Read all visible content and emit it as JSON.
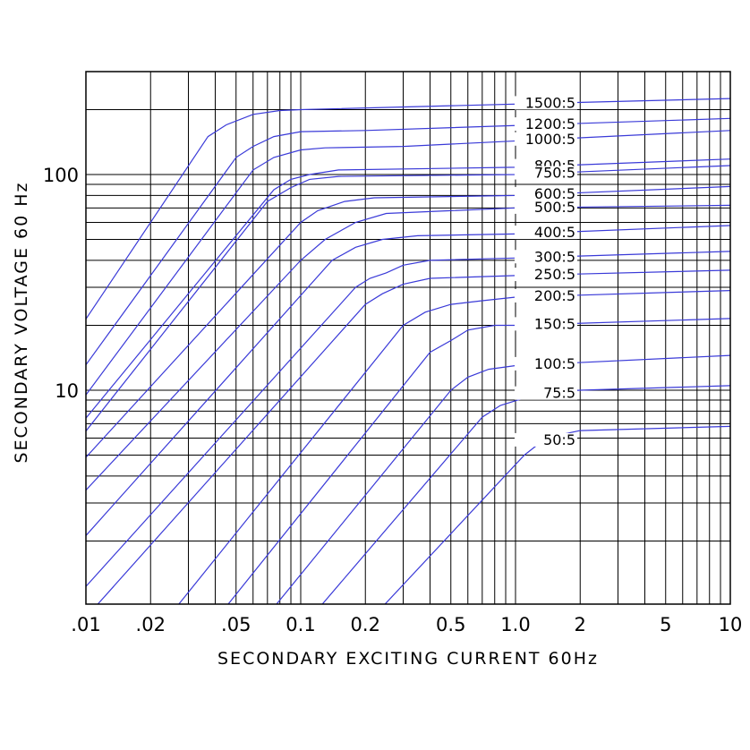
{
  "chart_data": {
    "type": "line",
    "title": "",
    "xlabel": "SECONDARY EXCITING CURRENT 60Hz",
    "ylabel": "SECONDARY VOLTAGE 60 Hz",
    "x_scale": "log",
    "y_scale": "log",
    "xlim": [
      0.01,
      10
    ],
    "ylim": [
      1.3,
      300
    ],
    "grid": true,
    "series_color": "#3a3ad8",
    "x_ticks": [
      {
        "value": 0.01,
        "label": ".01"
      },
      {
        "value": 0.02,
        "label": ".02"
      },
      {
        "value": 0.05,
        "label": ".05"
      },
      {
        "value": 0.1,
        "label": "0.1"
      },
      {
        "value": 0.2,
        "label": "0.2"
      },
      {
        "value": 0.5,
        "label": "0.5"
      },
      {
        "value": 1.0,
        "label": "1.0"
      },
      {
        "value": 2,
        "label": "2"
      },
      {
        "value": 5,
        "label": "5"
      },
      {
        "value": 10,
        "label": "10"
      }
    ],
    "y_ticks": [
      {
        "value": 10,
        "label": "10"
      },
      {
        "value": 100,
        "label": "100"
      }
    ],
    "series": [
      {
        "name": "1500:5",
        "points": [
          [
            0.006,
            10
          ],
          [
            0.037,
            150
          ],
          [
            0.045,
            170
          ],
          [
            0.06,
            190
          ],
          [
            0.08,
            198
          ],
          [
            0.1,
            200
          ],
          [
            10,
            225
          ]
        ]
      },
      {
        "name": "1200:5",
        "points": [
          [
            0.006,
            6.5
          ],
          [
            0.05,
            120
          ],
          [
            0.06,
            135
          ],
          [
            0.075,
            150
          ],
          [
            0.1,
            158
          ],
          [
            0.2,
            160
          ],
          [
            10,
            182
          ]
        ]
      },
      {
        "name": "1000:5",
        "points": [
          [
            0.006,
            4.8
          ],
          [
            0.06,
            105
          ],
          [
            0.075,
            120
          ],
          [
            0.1,
            130
          ],
          [
            0.13,
            133
          ],
          [
            0.3,
            135
          ],
          [
            10,
            160
          ]
        ]
      },
      {
        "name": "800:5",
        "points": [
          [
            0.006,
            4
          ],
          [
            0.075,
            85
          ],
          [
            0.09,
            95
          ],
          [
            0.11,
            100
          ],
          [
            0.15,
            105
          ],
          [
            1,
            108
          ],
          [
            10,
            118
          ]
        ]
      },
      {
        "name": "750:5",
        "points": [
          [
            0.006,
            3.4
          ],
          [
            0.07,
            75
          ],
          [
            0.09,
            87
          ],
          [
            0.11,
            95
          ],
          [
            0.15,
            98
          ],
          [
            1,
            100
          ],
          [
            10,
            110
          ]
        ]
      },
      {
        "name": "600:5",
        "points": [
          [
            0.006,
            2.8
          ],
          [
            0.1,
            60
          ],
          [
            0.12,
            68
          ],
          [
            0.16,
            75
          ],
          [
            0.22,
            78
          ],
          [
            1,
            80
          ],
          [
            10,
            88
          ]
        ]
      },
      {
        "name": "500:5",
        "points": [
          [
            0.006,
            2
          ],
          [
            0.1,
            40
          ],
          [
            0.13,
            50
          ],
          [
            0.18,
            60
          ],
          [
            0.25,
            66
          ],
          [
            0.5,
            68
          ],
          [
            1,
            70
          ],
          [
            10,
            72
          ]
        ]
      },
      {
        "name": "400:5",
        "points": [
          [
            0.006,
            1.2
          ],
          [
            0.14,
            40
          ],
          [
            0.18,
            46
          ],
          [
            0.24,
            50
          ],
          [
            0.35,
            52
          ],
          [
            1,
            53
          ],
          [
            10,
            58
          ]
        ]
      },
      {
        "name": "300:5",
        "points": [
          [
            0.006,
            0.7
          ],
          [
            0.18,
            30
          ],
          [
            0.21,
            33
          ],
          [
            0.25,
            35
          ],
          [
            0.3,
            38
          ],
          [
            0.4,
            40
          ],
          [
            1,
            41
          ],
          [
            10,
            44
          ]
        ]
      },
      {
        "name": "250:5",
        "points": [
          [
            0.006,
            0.5
          ],
          [
            0.2,
            25
          ],
          [
            0.24,
            28
          ],
          [
            0.3,
            31
          ],
          [
            0.4,
            33
          ],
          [
            1,
            34
          ],
          [
            10,
            36
          ]
        ]
      },
      {
        "name": "200:5",
        "points": [
          [
            0.02,
            0.7
          ],
          [
            0.3,
            20
          ],
          [
            0.38,
            23
          ],
          [
            0.5,
            25
          ],
          [
            0.7,
            26
          ],
          [
            1,
            27
          ],
          [
            10,
            29
          ]
        ]
      },
      {
        "name": "150:5",
        "points": [
          [
            0.03,
            0.6
          ],
          [
            0.4,
            15
          ],
          [
            0.5,
            17
          ],
          [
            0.6,
            19
          ],
          [
            0.8,
            20
          ],
          [
            1,
            20
          ],
          [
            10,
            21.5
          ]
        ]
      },
      {
        "name": "100:5",
        "points": [
          [
            0.05,
            0.6
          ],
          [
            0.5,
            10
          ],
          [
            0.6,
            11.5
          ],
          [
            0.75,
            12.5
          ],
          [
            1,
            13
          ],
          [
            10,
            14.5
          ]
        ]
      },
      {
        "name": "75:5",
        "points": [
          [
            0.08,
            0.6
          ],
          [
            0.7,
            7.5
          ],
          [
            0.85,
            8.5
          ],
          [
            1.1,
            9.2
          ],
          [
            1.5,
            9.8
          ],
          [
            2,
            10
          ],
          [
            10,
            10.5
          ]
        ]
      },
      {
        "name": "50:5",
        "points": [
          [
            0.15,
            0.6
          ],
          [
            1.1,
            5
          ],
          [
            1.3,
            5.7
          ],
          [
            1.6,
            6.2
          ],
          [
            2,
            6.5
          ],
          [
            10,
            6.8
          ]
        ]
      }
    ]
  }
}
